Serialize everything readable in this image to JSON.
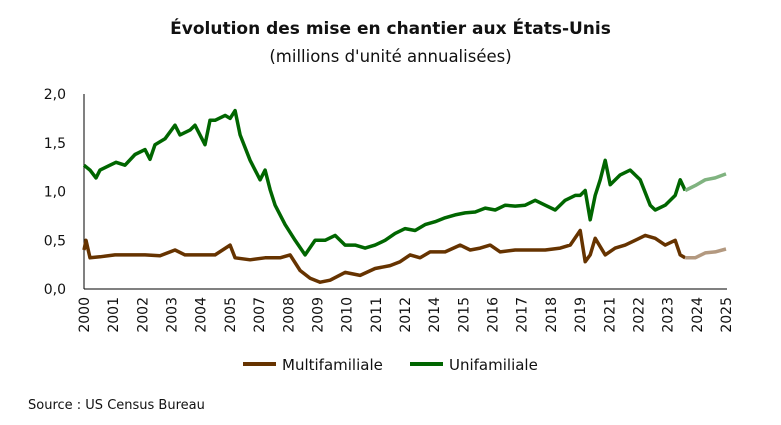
{
  "chart_data": {
    "type": "line",
    "title": "Évolution des mise en chantier aux États-Unis",
    "subtitle": "(millions d'unité annualisées)",
    "xlabel": "",
    "ylabel": "",
    "ylim": [
      0,
      2
    ],
    "xlim": [
      2000,
      2025.67
    ],
    "yticks": [
      "0,0",
      "0,5",
      "1,0",
      "1,5",
      "2,0"
    ],
    "ytick_values": [
      0,
      0.5,
      1.0,
      1.5,
      2.0
    ],
    "xtick_labels": [
      "2000",
      "2001",
      "2002",
      "2003",
      "2004",
      "2005",
      "2007",
      "2008",
      "2009",
      "2010",
      "2011",
      "2012",
      "2014",
      "2015",
      "2016",
      "2017",
      "2018",
      "2019",
      "2021",
      "2022",
      "2023",
      "2024",
      "2025"
    ],
    "grid": false,
    "legend": "bottom",
    "series": [
      {
        "name": "Multifamiliale",
        "color": "#663300",
        "style": "actual",
        "points": [
          [
            2000,
            0.4
          ],
          [
            2000.08,
            0.5
          ],
          [
            2000.24,
            0.32
          ],
          [
            2000.64,
            0.33
          ],
          [
            2001.24,
            0.35
          ],
          [
            2001.84,
            0.35
          ],
          [
            2002.44,
            0.35
          ],
          [
            2003.04,
            0.34
          ],
          [
            2003.64,
            0.4
          ],
          [
            2004.04,
            0.35
          ],
          [
            2004.64,
            0.35
          ],
          [
            2005.24,
            0.35
          ],
          [
            2005.84,
            0.45
          ],
          [
            2006.04,
            0.32
          ],
          [
            2006.64,
            0.3
          ],
          [
            2007.24,
            0.32
          ],
          [
            2007.84,
            0.32
          ],
          [
            2008.24,
            0.35
          ],
          [
            2008.64,
            0.19
          ],
          [
            2009.04,
            0.11
          ],
          [
            2009.44,
            0.07
          ],
          [
            2009.84,
            0.09
          ],
          [
            2010.44,
            0.17
          ],
          [
            2011.04,
            0.14
          ],
          [
            2011.64,
            0.21
          ],
          [
            2012.24,
            0.24
          ],
          [
            2012.64,
            0.28
          ],
          [
            2013.04,
            0.35
          ],
          [
            2013.44,
            0.32
          ],
          [
            2013.84,
            0.38
          ],
          [
            2014.44,
            0.38
          ],
          [
            2015.04,
            0.45
          ],
          [
            2015.44,
            0.4
          ],
          [
            2015.84,
            0.42
          ],
          [
            2016.24,
            0.45
          ],
          [
            2016.64,
            0.38
          ],
          [
            2017.24,
            0.4
          ],
          [
            2017.84,
            0.4
          ],
          [
            2018.44,
            0.4
          ],
          [
            2019.04,
            0.42
          ],
          [
            2019.44,
            0.45
          ],
          [
            2019.84,
            0.6
          ],
          [
            2020.04,
            0.28
          ],
          [
            2020.24,
            0.35
          ],
          [
            2020.44,
            0.52
          ],
          [
            2020.84,
            0.35
          ],
          [
            2021.24,
            0.42
          ],
          [
            2021.64,
            0.45
          ],
          [
            2022.04,
            0.5
          ],
          [
            2022.44,
            0.55
          ],
          [
            2022.84,
            0.52
          ],
          [
            2023.24,
            0.45
          ],
          [
            2023.64,
            0.5
          ],
          [
            2023.84,
            0.35
          ],
          [
            2024.04,
            0.32
          ]
        ]
      },
      {
        "name": "Unifamiliale",
        "color": "#006600",
        "style": "actual",
        "points": [
          [
            2000,
            1.27
          ],
          [
            2000.24,
            1.22
          ],
          [
            2000.48,
            1.14
          ],
          [
            2000.64,
            1.22
          ],
          [
            2001.04,
            1.27
          ],
          [
            2001.28,
            1.3
          ],
          [
            2001.64,
            1.27
          ],
          [
            2002.04,
            1.38
          ],
          [
            2002.44,
            1.43
          ],
          [
            2002.64,
            1.33
          ],
          [
            2002.84,
            1.48
          ],
          [
            2003.24,
            1.54
          ],
          [
            2003.64,
            1.68
          ],
          [
            2003.84,
            1.58
          ],
          [
            2004.24,
            1.63
          ],
          [
            2004.44,
            1.68
          ],
          [
            2004.84,
            1.48
          ],
          [
            2005.04,
            1.73
          ],
          [
            2005.24,
            1.73
          ],
          [
            2005.64,
            1.78
          ],
          [
            2005.84,
            1.75
          ],
          [
            2006.04,
            1.83
          ],
          [
            2006.24,
            1.58
          ],
          [
            2006.64,
            1.32
          ],
          [
            2007.04,
            1.12
          ],
          [
            2007.24,
            1.22
          ],
          [
            2007.44,
            1.02
          ],
          [
            2007.64,
            0.86
          ],
          [
            2008.04,
            0.66
          ],
          [
            2008.44,
            0.5
          ],
          [
            2008.84,
            0.35
          ],
          [
            2009.24,
            0.5
          ],
          [
            2009.64,
            0.5
          ],
          [
            2010.04,
            0.55
          ],
          [
            2010.44,
            0.45
          ],
          [
            2010.84,
            0.45
          ],
          [
            2011.24,
            0.42
          ],
          [
            2011.64,
            0.45
          ],
          [
            2012.04,
            0.5
          ],
          [
            2012.44,
            0.57
          ],
          [
            2012.84,
            0.62
          ],
          [
            2013.24,
            0.6
          ],
          [
            2013.64,
            0.66
          ],
          [
            2014.04,
            0.69
          ],
          [
            2014.44,
            0.73
          ],
          [
            2014.84,
            0.76
          ],
          [
            2015.24,
            0.78
          ],
          [
            2015.64,
            0.79
          ],
          [
            2016.04,
            0.83
          ],
          [
            2016.44,
            0.81
          ],
          [
            2016.84,
            0.86
          ],
          [
            2017.24,
            0.85
          ],
          [
            2017.64,
            0.86
          ],
          [
            2018.04,
            0.91
          ],
          [
            2018.44,
            0.86
          ],
          [
            2018.84,
            0.81
          ],
          [
            2019.24,
            0.91
          ],
          [
            2019.64,
            0.96
          ],
          [
            2019.84,
            0.96
          ],
          [
            2020.04,
            1.01
          ],
          [
            2020.24,
            0.71
          ],
          [
            2020.44,
            0.96
          ],
          [
            2020.64,
            1.12
          ],
          [
            2020.84,
            1.32
          ],
          [
            2021.04,
            1.07
          ],
          [
            2021.44,
            1.17
          ],
          [
            2021.84,
            1.22
          ],
          [
            2022.24,
            1.12
          ],
          [
            2022.64,
            0.86
          ],
          [
            2022.84,
            0.81
          ],
          [
            2023.24,
            0.86
          ],
          [
            2023.64,
            0.96
          ],
          [
            2023.84,
            1.12
          ],
          [
            2024.04,
            1.01
          ]
        ]
      },
      {
        "color": "#b39980",
        "style": "forecast",
        "points": [
          [
            2024.04,
            0.32
          ],
          [
            2024.44,
            0.32
          ],
          [
            2024.84,
            0.37
          ],
          [
            2025.24,
            0.38
          ],
          [
            2025.67,
            0.41
          ]
        ]
      },
      {
        "color": "#80b380",
        "style": "forecast",
        "points": [
          [
            2024.04,
            1.01
          ],
          [
            2024.44,
            1.06
          ],
          [
            2024.84,
            1.12
          ],
          [
            2025.24,
            1.14
          ],
          [
            2025.67,
            1.18
          ]
        ]
      }
    ]
  },
  "source": "Source : US Census Bureau"
}
